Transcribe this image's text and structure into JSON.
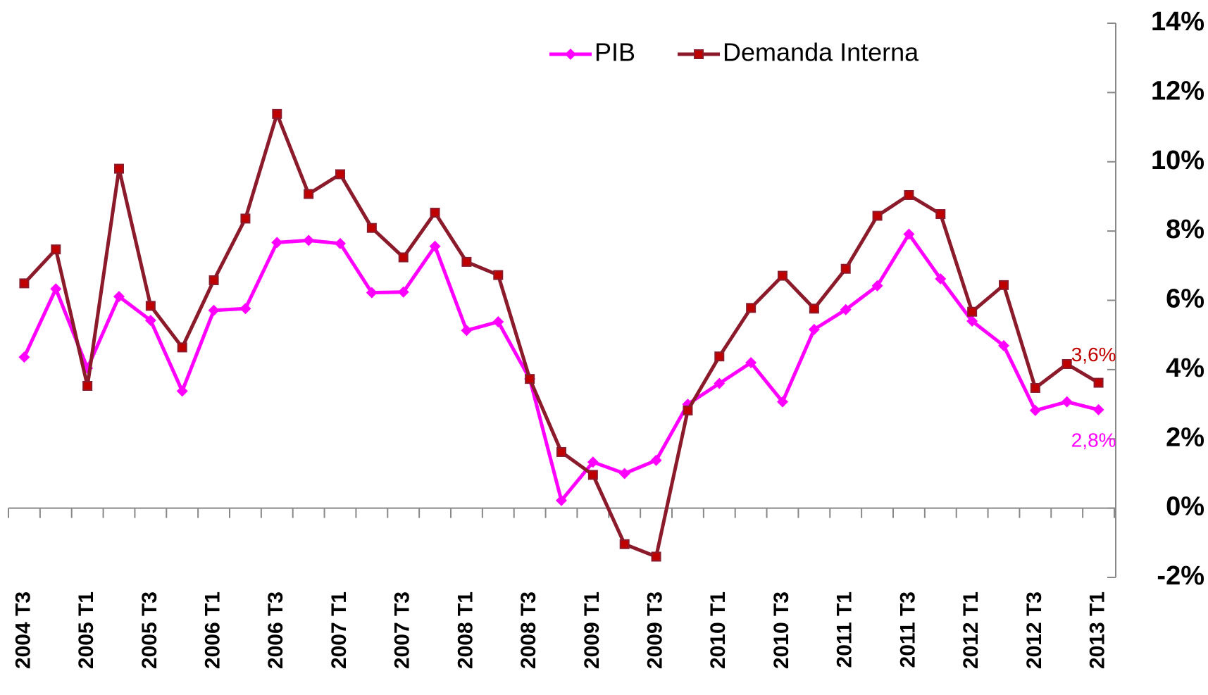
{
  "chart_data": {
    "type": "line",
    "categories": [
      "2004 T3",
      null,
      "2005 T1",
      null,
      "2005 T3",
      null,
      "2006 T1",
      null,
      "2006 T3",
      null,
      "2007 T1",
      null,
      "2007 T3",
      null,
      "2008 T1",
      null,
      "2008 T3",
      null,
      "2009 T1",
      null,
      "2009 T3",
      null,
      "2010 T1",
      null,
      "2010 T3",
      null,
      "2011 T1",
      null,
      "2011 T3",
      null,
      "2012 T1",
      null,
      "2012 T3",
      null,
      "2013 T1"
    ],
    "series": [
      {
        "name": "PIB",
        "color": "#ff00ff",
        "marker": "diamond",
        "values": [
          4.36,
          6.33,
          4.04,
          6.11,
          5.42,
          3.38,
          5.71,
          5.76,
          7.67,
          7.73,
          7.64,
          6.22,
          6.24,
          7.56,
          5.13,
          5.38,
          3.73,
          0.22,
          1.33,
          1.0,
          1.38,
          3.0,
          3.6,
          4.2,
          3.07,
          5.16,
          5.73,
          6.42,
          7.91,
          6.62,
          5.4,
          4.69,
          2.82,
          3.07,
          2.84
        ],
        "value_labels": [
          null,
          null,
          null,
          null,
          null,
          null,
          null,
          null,
          null,
          null,
          null,
          null,
          null,
          null,
          null,
          null,
          null,
          null,
          null,
          null,
          null,
          null,
          null,
          null,
          null,
          null,
          null,
          null,
          null,
          null,
          null,
          null,
          null,
          null,
          "2,8%"
        ]
      },
      {
        "name": "Demanda Interna",
        "color": "#8b1a2b",
        "marker": "square",
        "values": [
          6.49,
          7.47,
          3.53,
          9.8,
          5.84,
          4.64,
          6.58,
          8.36,
          11.38,
          9.07,
          9.64,
          8.09,
          7.24,
          8.53,
          7.11,
          6.73,
          3.73,
          1.62,
          0.96,
          -1.04,
          -1.4,
          2.82,
          4.38,
          5.78,
          6.71,
          5.76,
          6.91,
          8.44,
          9.04,
          8.49,
          5.67,
          6.44,
          3.47,
          4.16,
          3.62
        ],
        "value_labels": [
          null,
          null,
          null,
          null,
          null,
          null,
          null,
          null,
          null,
          null,
          null,
          null,
          null,
          null,
          null,
          null,
          null,
          null,
          null,
          null,
          null,
          null,
          null,
          null,
          null,
          null,
          null,
          null,
          null,
          null,
          null,
          null,
          null,
          null,
          "3,6%"
        ]
      }
    ],
    "ylim": [
      -2,
      14
    ],
    "yticks": [
      {
        "value": -2,
        "label": "-2%"
      },
      {
        "value": 0,
        "label": "0%"
      },
      {
        "value": 2,
        "label": "2%"
      },
      {
        "value": 4,
        "label": "4%"
      },
      {
        "value": 6,
        "label": "6%"
      },
      {
        "value": 8,
        "label": "8%"
      },
      {
        "value": 10,
        "label": "10%"
      },
      {
        "value": 12,
        "label": "12%"
      },
      {
        "value": 14,
        "label": "14%"
      }
    ],
    "y_axis_side": "right",
    "grid": false,
    "legend": "top"
  }
}
